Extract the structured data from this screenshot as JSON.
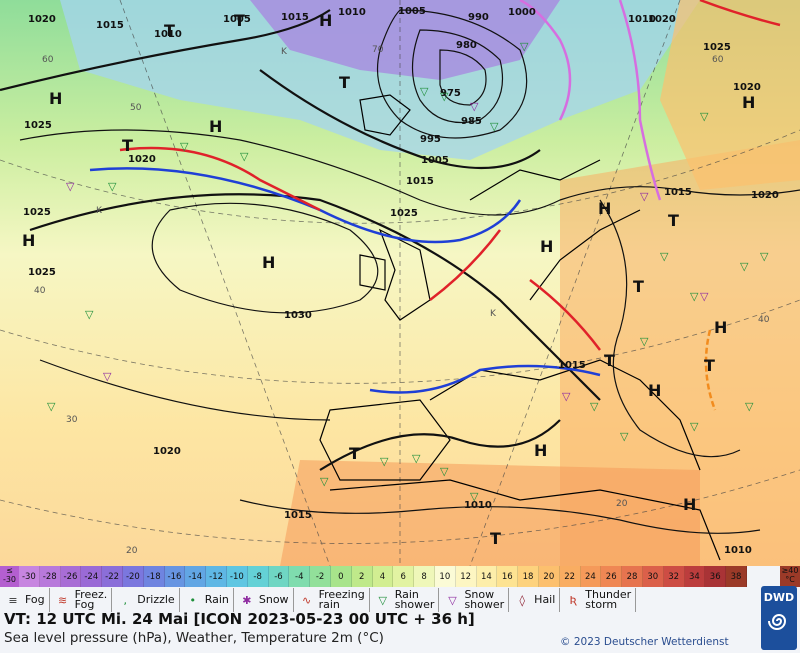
{
  "map": {
    "isobar_labels": [
      "1020",
      "1015",
      "1010",
      "1005",
      "1015",
      "1010",
      "1005",
      "1000",
      "990",
      "1020",
      "1025",
      "1020",
      "980",
      "975",
      "985",
      "995",
      "1005",
      "1015",
      "1025",
      "1020",
      "1025",
      "1025",
      "1030",
      "1015",
      "1025",
      "1015",
      "1010",
      "1015",
      "1020",
      "1010",
      "1020",
      "1010"
    ],
    "temp_labels": [
      "60",
      "50",
      "70",
      "40",
      "30",
      "20",
      "60",
      "40",
      "20"
    ],
    "pressure_centers": [
      "T",
      "H",
      "T",
      "H",
      "T",
      "H",
      "T",
      "H",
      "H",
      "H",
      "H",
      "H",
      "T",
      "T",
      "H",
      "H",
      "T",
      "T",
      "H",
      "K",
      "K",
      "K",
      "H",
      "T",
      "T"
    ]
  },
  "legend": {
    "scale_left": "≤\n-30",
    "scale_right": "≥40\n°C",
    "temps": [
      "-30",
      "-28",
      "-26",
      "-24",
      "-22",
      "-20",
      "-18",
      "-16",
      "-14",
      "-12",
      "-10",
      "-8",
      "-6",
      "-4",
      "-2",
      "0",
      "2",
      "4",
      "6",
      "8",
      "10",
      "12",
      "14",
      "16",
      "18",
      "20",
      "22",
      "24",
      "26",
      "28",
      "30",
      "32",
      "34",
      "36",
      "38"
    ],
    "colors": [
      "#c785e0",
      "#b879db",
      "#a86dd5",
      "#9a6ad6",
      "#8b6ed9",
      "#7b77de",
      "#6f84e0",
      "#6795e2",
      "#62a6e4",
      "#5fb7e5",
      "#5fc6e2",
      "#64d1d6",
      "#6fd6c3",
      "#7fdcae",
      "#92e09a",
      "#a8e48b",
      "#bfe98a",
      "#d2ee92",
      "#e2f3a2",
      "#eff7b9",
      "#fbfbd6",
      "#fdf6c2",
      "#fdeeaa",
      "#fde392",
      "#fdd27d",
      "#fcc06e",
      "#f9ad62",
      "#f59a5a",
      "#ef8754",
      "#e6744f",
      "#db604a",
      "#cd4d44",
      "#bc3d3d",
      "#a93336",
      "#9b3a28"
    ],
    "symbols": [
      {
        "icon": "fog-icon",
        "glyph": "≡",
        "color": "#333",
        "label": "Fog"
      },
      {
        "icon": "freezing-fog-icon",
        "glyph": "≋",
        "color": "#c0392b",
        "label": "Freez.\nFog"
      },
      {
        "icon": "drizzle-icon",
        "glyph": ",",
        "color": "#1e8f3a",
        "label": "Drizzle"
      },
      {
        "icon": "rain-icon",
        "glyph": "•",
        "color": "#1e8f3a",
        "label": "Rain"
      },
      {
        "icon": "snow-icon",
        "glyph": "✱",
        "color": "#8e2aa0",
        "label": "Snow"
      },
      {
        "icon": "freezing-rain-icon",
        "glyph": "∿",
        "color": "#c0392b",
        "label": "Freezing\nrain"
      },
      {
        "icon": "rain-shower-icon",
        "glyph": "▽",
        "color": "#1e8f3a",
        "label": "Rain\nshower"
      },
      {
        "icon": "snow-shower-icon",
        "glyph": "▽",
        "color": "#8e2aa0",
        "label": "Snow\nshower"
      },
      {
        "icon": "hail-icon",
        "glyph": "◊",
        "color": "#8b1a2b",
        "label": "Hail"
      },
      {
        "icon": "thunderstorm-icon",
        "glyph": "Ʀ",
        "color": "#c0392b",
        "label": "Thunder\nstorm"
      }
    ],
    "valid_time": "VT: 12 UTC Mi.  24 Mai [ICON 2023-05-23  00 UTC + 36 h]",
    "subtitle": "Sea level pressure (hPa), Weather, Temperature 2m (°C)",
    "copyright": "© 2023 Deutscher Wetterdienst",
    "logo": "DWD"
  }
}
